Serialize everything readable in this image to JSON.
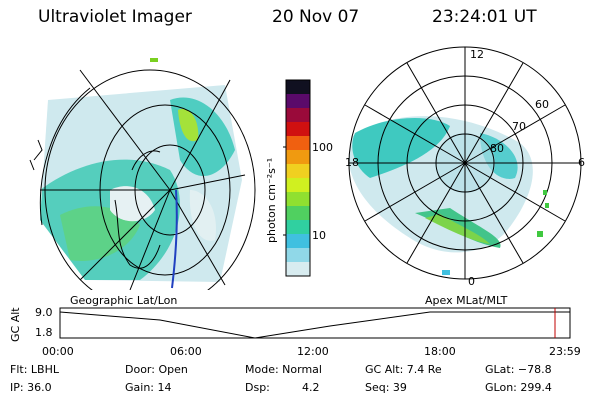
{
  "header": {
    "title": "Ultraviolet Imager",
    "date": "20 Nov 07",
    "time": "23:24:01 UT"
  },
  "colorbar": {
    "unit_label": "photon cm⁻²s⁻¹",
    "ticks": [
      "100",
      "10"
    ],
    "colors": [
      "#101020",
      "#5a0a6a",
      "#9a0a3a",
      "#d01010",
      "#f06010",
      "#f09a10",
      "#f0d020",
      "#d0f020",
      "#90e030",
      "#50d060",
      "#30d0a0",
      "#40c0e0",
      "#90d8e8",
      "#d8ecf0"
    ]
  },
  "polar": {
    "lat_labels": [
      "60",
      "70",
      "80"
    ],
    "mlt_labels": {
      "top": "12",
      "left": "18",
      "right": "6",
      "bottom": "0"
    }
  },
  "timeline": {
    "left_label": "Geographic Lat/Lon",
    "right_label": "Apex MLat/MLT",
    "y_axis_label": "GC Alt",
    "y_ticks": [
      "9.0",
      "1.8"
    ],
    "x_ticks": [
      "00:00",
      "06:00",
      "12:00",
      "18:00",
      "23:59"
    ],
    "current_marker_color": "#c00000"
  },
  "status": {
    "filter": "Flt: LBHL",
    "ip": "IP: 36.0",
    "door": "Door: Open",
    "gain": "Gain: 14",
    "mode": "Mode: Normal",
    "dsp_label": "Dsp:",
    "dsp_value": "4.2",
    "gc_alt": "GC Alt: 7.4 Re",
    "seq": "Seq: 39",
    "glat": "GLat: −78.8",
    "glon": "GLon: 299.4"
  }
}
